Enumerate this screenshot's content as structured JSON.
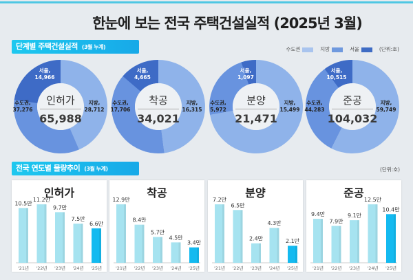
{
  "title": "한눈에 보는 전국 주택건설실적  (2025년 3월)",
  "section1": {
    "label": "단계별 주택건설실적",
    "sub": "(3월 누계)"
  },
  "section2": {
    "label": "전국 연도별 물량추이",
    "sub": "(3월 누계)"
  },
  "legend": {
    "items": [
      {
        "label": "수도권",
        "color": "#a9c4ee"
      },
      {
        "label": "지방",
        "color": "#6f99de"
      },
      {
        "label": "서울",
        "color": "#3f6cc4"
      }
    ],
    "unit": "(단위:호)"
  },
  "unit2": "(단위:호)",
  "colors": {
    "jibang": "#8fb3ea",
    "sudo": "#6893df",
    "seoul": "#3e6bc6",
    "bar": "#a6e3f0",
    "bar_current": "#14baf0"
  },
  "chart_data": [
    {
      "type": "pie",
      "title": "인허가",
      "total": "65,988",
      "slices": [
        {
          "name": "지방",
          "label": "지방,",
          "value": 28712,
          "value_label": "28,712"
        },
        {
          "name": "수도권",
          "label": "수도권,",
          "value": 37276,
          "value_label": "37,276"
        },
        {
          "name": "서울",
          "label": "서울,",
          "value": 14966,
          "value_label": "14,966"
        }
      ]
    },
    {
      "type": "pie",
      "title": "착공",
      "total": "34,021",
      "slices": [
        {
          "name": "지방",
          "label": "지방,",
          "value": 16315,
          "value_label": "16,315"
        },
        {
          "name": "수도권",
          "label": "수도권,",
          "value": 17706,
          "value_label": "17,706"
        },
        {
          "name": "서울",
          "label": "서울,",
          "value": 4665,
          "value_label": "4,665"
        }
      ]
    },
    {
      "type": "pie",
      "title": "분양",
      "total": "21,471",
      "slices": [
        {
          "name": "지방",
          "label": "지방,",
          "value": 15499,
          "value_label": "15,499"
        },
        {
          "name": "수도권",
          "label": "수도권,",
          "value": 5972,
          "value_label": "5,972"
        },
        {
          "name": "서울",
          "label": "서울,",
          "value": 1097,
          "value_label": "1,097"
        }
      ]
    },
    {
      "type": "pie",
      "title": "준공",
      "total": "104,032",
      "slices": [
        {
          "name": "지방",
          "label": "지방,",
          "value": 59749,
          "value_label": "59,749"
        },
        {
          "name": "수도권",
          "label": "수도권,",
          "value": 44283,
          "value_label": "44,283"
        },
        {
          "name": "서울",
          "label": "서울,",
          "value": 10515,
          "value_label": "10,515"
        }
      ]
    },
    {
      "type": "bar",
      "title": "인허가",
      "categories": [
        "'21년",
        "'22년",
        "'23년",
        "'24년",
        "'25년"
      ],
      "values": [
        10.5,
        11.2,
        9.7,
        7.5,
        6.6
      ],
      "value_labels": [
        "10.5만",
        "11.2만",
        "9.7만",
        "7.5만",
        "6.6만"
      ]
    },
    {
      "type": "bar",
      "title": "착공",
      "categories": [
        "'21년",
        "'22년",
        "'23년",
        "'24년",
        "'25년"
      ],
      "values": [
        12.9,
        8.4,
        5.7,
        4.5,
        3.4
      ],
      "value_labels": [
        "12.9만",
        "8.4만",
        "5.7만",
        "4.5만",
        "3.4만"
      ]
    },
    {
      "type": "bar",
      "title": "분양",
      "categories": [
        "'21년",
        "'22년",
        "'23년",
        "'24년",
        "'25년"
      ],
      "values": [
        7.2,
        6.5,
        2.4,
        4.3,
        2.1
      ],
      "value_labels": [
        "7.2만",
        "6.5만",
        "2.4만",
        "4.3만",
        "2.1만"
      ]
    },
    {
      "type": "bar",
      "title": "준공",
      "categories": [
        "'21년",
        "'22년",
        "'23년",
        "'24년",
        "'25년"
      ],
      "values": [
        9.4,
        7.9,
        9.1,
        12.5,
        10.4
      ],
      "value_labels": [
        "9.4만",
        "7.9만",
        "9.1만",
        "12.5만",
        "10.4만"
      ]
    }
  ]
}
